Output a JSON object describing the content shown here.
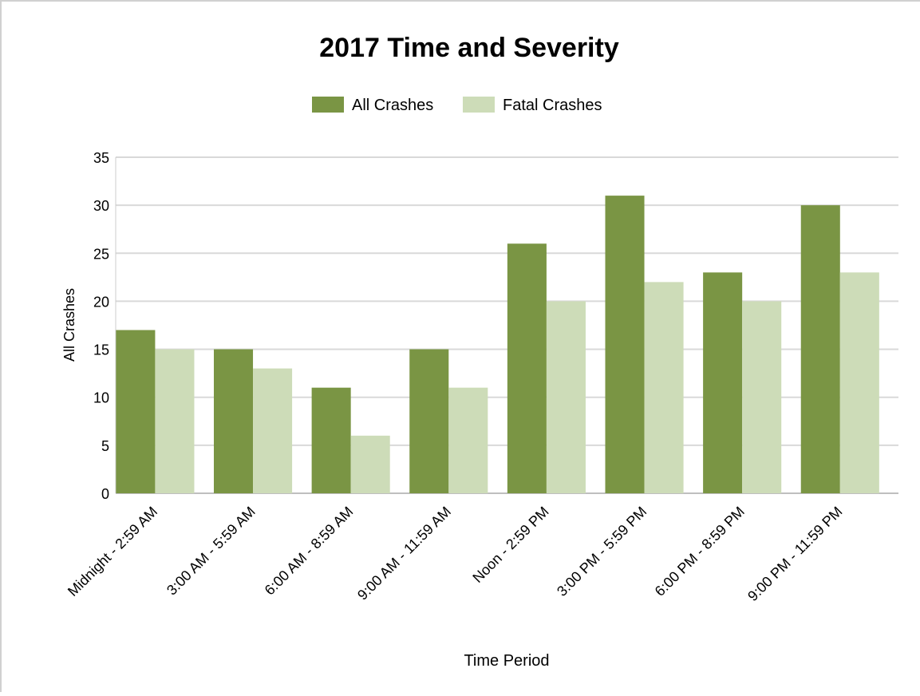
{
  "chart_data": {
    "type": "bar",
    "title": "2017 Time and Severity",
    "xlabel": "Time Period",
    "ylabel": "All Crashes",
    "categories": [
      "Midnight - 2:59 AM",
      "3:00 AM - 5:59 AM",
      "6:00 AM - 8:59 AM",
      "9:00 AM - 11:59 AM",
      "Noon - 2:59 PM",
      "3:00 PM - 5:59 PM",
      "6:00 PM - 8:59 PM",
      "9:00 PM - 11:59 PM"
    ],
    "series": [
      {
        "name": "All Crashes",
        "color": "#7a9544",
        "values": [
          17,
          15,
          11,
          15,
          26,
          31,
          23,
          30
        ]
      },
      {
        "name": "Fatal Crashes",
        "color": "#cddcb8",
        "values": [
          15,
          13,
          6,
          11,
          20,
          22,
          20,
          23
        ]
      }
    ],
    "ylim": [
      0,
      35
    ],
    "yticks": [
      0,
      5,
      10,
      15,
      20,
      25,
      30,
      35
    ],
    "grid": true,
    "legend_position": "top-center"
  }
}
